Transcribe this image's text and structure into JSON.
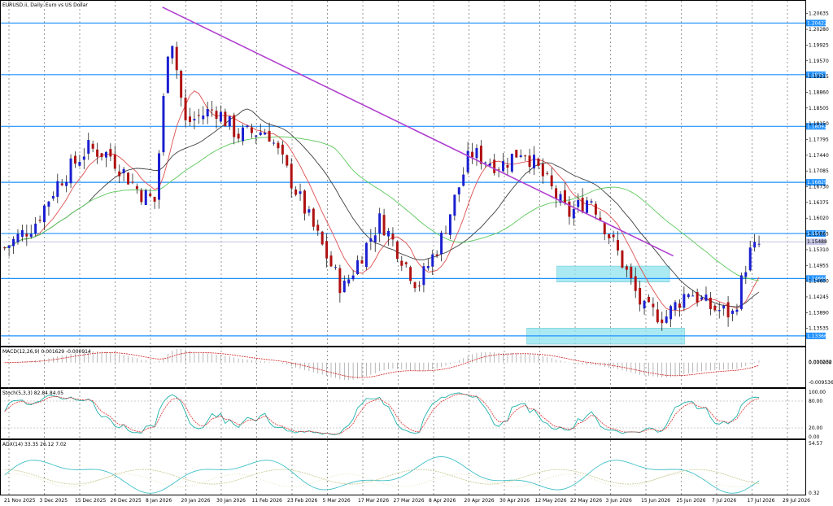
{
  "colors": {
    "bull": "#1a1fd0",
    "bear": "#b01010",
    "ema_fast": "#e05050",
    "sma_mid": "#404040",
    "sma_slow": "#5cc95c",
    "level": "#1e90ff",
    "trendline": "#b040d0",
    "zone": "#8fe3ee",
    "current": "#b0b0d8",
    "macd_signal": "#d02020",
    "stoch_main": "#20b2aa",
    "stoch_signal": "#e03030",
    "adx_main": "#40c0c8",
    "adx_plus": "#c8c890",
    "adx_minus": "#d8d8a8"
  },
  "chart_data": [
    {
      "type": "candlestick",
      "title": "EURUSD.ii, Daily: Euro vs US Dollar",
      "price_axis_ticks": [
        "1.20635",
        "1.20280",
        "1.19925",
        "1.19570",
        "1.19215",
        "1.18860",
        "1.18505",
        "1.18150",
        "1.17795",
        "1.17440",
        "1.17085",
        "1.16730",
        "1.16375",
        "1.16020",
        "1.15665",
        "1.15310",
        "1.14955",
        "1.14600",
        "1.14245",
        "1.13890",
        "1.13535"
      ],
      "date_labels": [
        "21 Nov 2025",
        "3 Dec 2025",
        "15 Dec 2025",
        "26 Dec 2025",
        "8 Jan 2026",
        "20 Jan 2026",
        "30 Jan 2026",
        "11 Feb 2026",
        "23 Feb 2026",
        "5 Mar 2026",
        "17 Mar 2026",
        "27 Mar 2026",
        "8 Apr 2026",
        "20 Apr 2026",
        "30 Apr 2026",
        "12 May 2026",
        "22 May 2026",
        "3 Jun 2026",
        "15 Jun 2026",
        "25 Jun 2026",
        "7 Jul 2026",
        "17 Jul 2026",
        "29 Jul 2026"
      ],
      "ylim": [
        1.1318,
        1.2085
      ],
      "horizontal_levels": [
        {
          "value": 1.20422,
          "label": "1.20422"
        },
        {
          "value": 1.19257,
          "label": "1.19257"
        },
        {
          "value": 1.18092,
          "label": "1.18092"
        },
        {
          "value": 1.16829,
          "label": "1.16829"
        },
        {
          "value": 1.15674,
          "label": "1.15674"
        },
        {
          "value": 1.1466,
          "label": "1.14660"
        },
        {
          "value": 1.13366,
          "label": "1.13366"
        }
      ],
      "current_price": {
        "value": 1.15488,
        "label": "1.15488"
      },
      "trendline": {
        "from": {
          "bar": 42,
          "price": 1.2078
        },
        "to": {
          "bar": 178,
          "price": 1.1517
        }
      },
      "zones": [
        {
          "bar_start": 147,
          "bar_end": 177,
          "price_high": 1.1494,
          "price_low": 1.1458
        },
        {
          "bar_start": 139,
          "bar_end": 181,
          "price_high": 1.1354,
          "price_low": 1.1318
        }
      ],
      "grid_vertical_dates": true,
      "seed_params": {
        "start_bar": 0,
        "bars": 172
      }
    },
    {
      "type": "line",
      "title": "MACD(12,26,9) 0.001629 -0.000914",
      "ticks": [
        "0.000232",
        "0.000000",
        "-0.009536"
      ],
      "ylim": [
        -0.011,
        0.003
      ]
    },
    {
      "type": "line",
      "title": "Stoch(5,3,3) 82.84 84.05",
      "ticks": [
        "100.00",
        "80.00",
        "20.00",
        "0.00"
      ],
      "ylim": [
        0,
        100
      ],
      "levels": [
        80,
        20
      ]
    },
    {
      "type": "line",
      "title": "ADX(14) 33.35 26.12 7.02",
      "ticks": [
        "54.57",
        "0.32"
      ],
      "ylim": [
        0.32,
        54.57
      ]
    }
  ]
}
